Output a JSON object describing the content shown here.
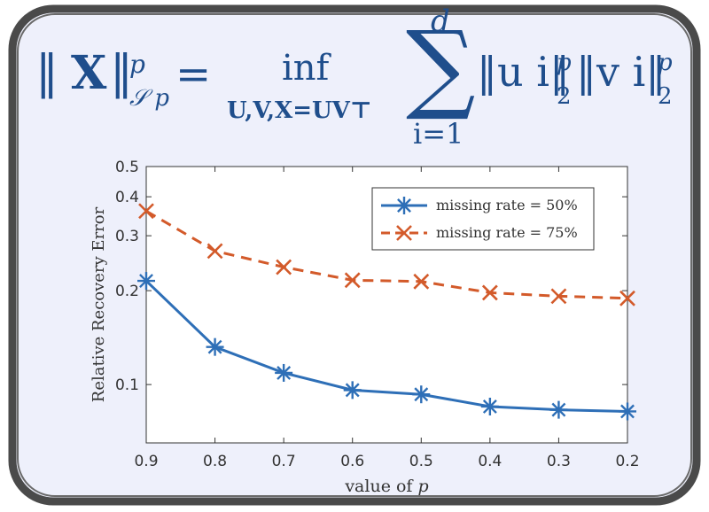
{
  "colors": {
    "background": "#eef0fb",
    "frame": "#4a4a4a",
    "formula": "#1f4e8c",
    "series_blue": "#2e6fb7",
    "series_orange": "#d35a2a",
    "axis": "#333333"
  },
  "formula": {
    "lhs_norm_open": "‖",
    "lhs_var": "X",
    "lhs_norm_close": "‖",
    "lhs_sup": "p",
    "lhs_sub": "𝒮 p",
    "equals": "=",
    "op": "inf",
    "op_sub": "U,V,X=UV⊤",
    "sum_symbol": "∑",
    "sum_upper": "d",
    "sum_lower": "i=1",
    "term1": "‖u i‖",
    "term1_sup": "p",
    "term1_sub": "2",
    "term2": "‖v i‖",
    "term2_sup": "p",
    "term2_sub": "2"
  },
  "chart_data": {
    "type": "line",
    "xlabel_text": "value of ",
    "xlabel_var": "p",
    "ylabel": "Relative Recovery Error",
    "yscale": "log",
    "ylim": [
      0.065,
      0.5
    ],
    "xlim": [
      0.9,
      0.2
    ],
    "x": [
      0.9,
      0.8,
      0.7,
      0.6,
      0.5,
      0.4,
      0.3,
      0.2
    ],
    "x_ticks": [
      "0.9",
      "0.8",
      "0.7",
      "0.6",
      "0.5",
      "0.4",
      "0.3",
      "0.2"
    ],
    "y_ticks": [
      {
        "value": 0.1,
        "label": "0.1"
      },
      {
        "value": 0.2,
        "label": "0.2"
      },
      {
        "value": 0.3,
        "label": "0.3"
      },
      {
        "value": 0.4,
        "label": "0.4"
      },
      {
        "value": 0.5,
        "label": "0.5"
      }
    ],
    "series": [
      {
        "name": "missing rate = 50%",
        "values": [
          0.215,
          0.132,
          0.109,
          0.096,
          0.093,
          0.085,
          0.083,
          0.082
        ],
        "style": "solid",
        "marker": "asterisk"
      },
      {
        "name": "missing rate = 75%",
        "values": [
          0.36,
          0.268,
          0.238,
          0.216,
          0.214,
          0.197,
          0.192,
          0.189
        ],
        "style": "dashed",
        "marker": "x"
      }
    ],
    "legend_position": "top-right",
    "grid": false
  }
}
